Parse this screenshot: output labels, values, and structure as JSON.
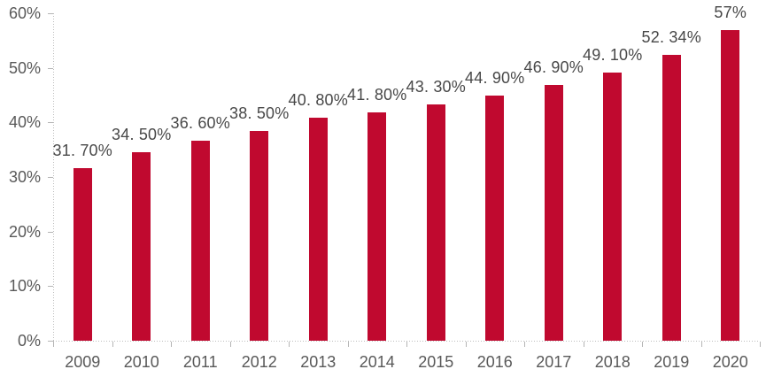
{
  "chart_data": {
    "type": "bar",
    "title": "",
    "xlabel": "",
    "ylabel": "",
    "categories": [
      "2009",
      "2010",
      "2011",
      "2012",
      "2013",
      "2014",
      "2015",
      "2016",
      "2017",
      "2018",
      "2019",
      "2020"
    ],
    "values": [
      31.7,
      34.5,
      36.6,
      38.5,
      40.8,
      41.8,
      43.3,
      44.9,
      46.9,
      49.1,
      52.34,
      57
    ],
    "data_labels": [
      "31. 70%",
      "34. 50%",
      "36. 60%",
      "38. 50%",
      "40. 80%",
      "41. 80%",
      "43. 30%",
      "44. 90%",
      "46. 90%",
      "49. 10%",
      "52. 34%",
      "57%"
    ],
    "ylim": [
      0,
      60
    ],
    "ytick_step": 10,
    "ytick_labels": [
      "0%",
      "10%",
      "20%",
      "30%",
      "40%",
      "50%",
      "60%"
    ],
    "grid": false,
    "legend": "none",
    "colors": {
      "bar": "#C0092F",
      "axis_line": "#bdbdbd",
      "axis_text": "#595959",
      "data_label_text": "#484848",
      "background": "#ffffff"
    }
  }
}
